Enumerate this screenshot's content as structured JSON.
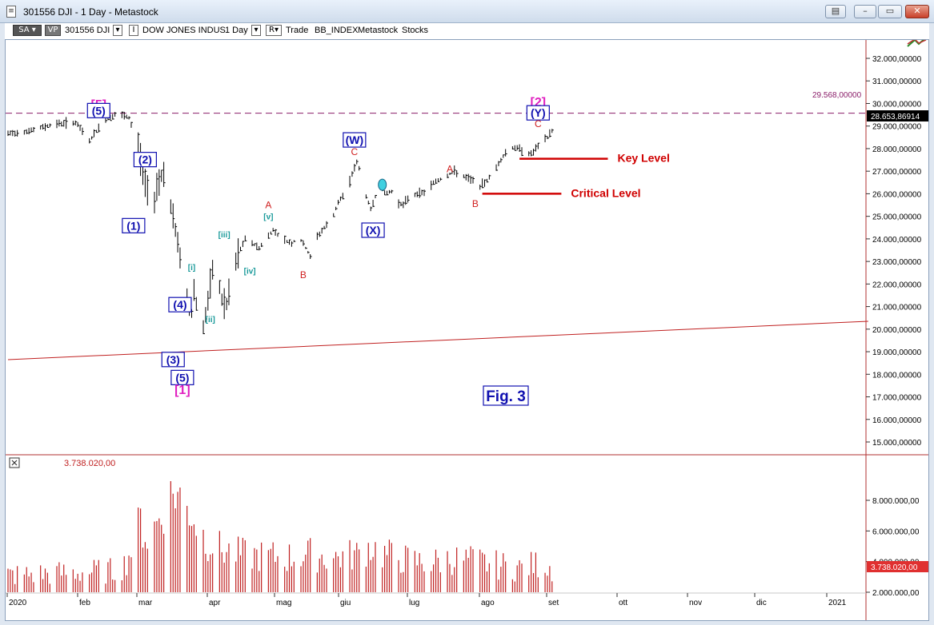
{
  "window": {
    "title": "301556 DJI - 1 Day - Metastock"
  },
  "toolbar": {
    "sa_label": "SA",
    "vp_label": "VP",
    "symbol": "301556 DJI",
    "security_name": "DOW JONES INDUS",
    "period": "1 Day",
    "r_label": "R",
    "mode": "Trade",
    "exchange": "BB_INDEX",
    "source": "Metastock",
    "category": "Stocks"
  },
  "chart_data": [
    {
      "type": "bar",
      "subtype": "ohlc",
      "x_ticks": [
        "2020",
        "feb",
        "mar",
        "apr",
        "mag",
        "giu",
        "lug",
        "ago",
        "set",
        "ott",
        "nov",
        "dic",
        "2021"
      ],
      "y_ticks": [
        "15.000,00000",
        "16.000,00000",
        "17.000,00000",
        "18.000,00000",
        "19.000,00000",
        "20.000,00000",
        "21.000,00000",
        "22.000,00000",
        "23.000,00000",
        "24.000,00000",
        "25.000,00000",
        "26.000,00000",
        "27.000,00000",
        "28.000,00000",
        "29.000,00000",
        "30.000,00000",
        "31.000,00000",
        "32.000,00000"
      ],
      "ylim": [
        14500,
        33300
      ],
      "price_path": [
        {
          "d": 0,
          "v": 28650
        },
        {
          "d": 10,
          "v": 28800
        },
        {
          "d": 20,
          "v": 29100
        },
        {
          "d": 29,
          "v": 29150
        },
        {
          "d": 35,
          "v": 28350
        },
        {
          "d": 41,
          "v": 29200
        },
        {
          "d": 47,
          "v": 29550
        },
        {
          "d": 52,
          "v": 29350
        },
        {
          "d": 56,
          "v": 28200
        },
        {
          "d": 59,
          "v": 26500
        },
        {
          "d": 62,
          "v": 25200
        },
        {
          "d": 64,
          "v": 26400
        },
        {
          "d": 67,
          "v": 27000
        },
        {
          "d": 70,
          "v": 25400
        },
        {
          "d": 73,
          "v": 23800
        },
        {
          "d": 75,
          "v": 22600
        },
        {
          "d": 77,
          "v": 21200
        },
        {
          "d": 79,
          "v": 20700
        },
        {
          "d": 80,
          "v": 21800
        },
        {
          "d": 82,
          "v": 20500
        },
        {
          "d": 83,
          "v": 19200
        },
        {
          "d": 84,
          "v": 20100
        },
        {
          "d": 86,
          "v": 21200
        },
        {
          "d": 88,
          "v": 22550
        },
        {
          "d": 90,
          "v": 22400
        },
        {
          "d": 92,
          "v": 21300
        },
        {
          "d": 94,
          "v": 21050
        },
        {
          "d": 96,
          "v": 22100
        },
        {
          "d": 99,
          "v": 23300
        },
        {
          "d": 102,
          "v": 24000
        },
        {
          "d": 105,
          "v": 23800
        },
        {
          "d": 108,
          "v": 23600
        },
        {
          "d": 111,
          "v": 24000
        },
        {
          "d": 114,
          "v": 24400
        },
        {
          "d": 118,
          "v": 24000
        },
        {
          "d": 122,
          "v": 23800
        },
        {
          "d": 125,
          "v": 24100
        },
        {
          "d": 128,
          "v": 23600
        },
        {
          "d": 130,
          "v": 23200
        },
        {
          "d": 133,
          "v": 24100
        },
        {
          "d": 136,
          "v": 24500
        },
        {
          "d": 139,
          "v": 24800
        },
        {
          "d": 142,
          "v": 25600
        },
        {
          "d": 146,
          "v": 26200
        },
        {
          "d": 148,
          "v": 26900
        },
        {
          "d": 150,
          "v": 27400
        },
        {
          "d": 152,
          "v": 26800
        },
        {
          "d": 154,
          "v": 25900
        },
        {
          "d": 156,
          "v": 25300
        },
        {
          "d": 158,
          "v": 25900
        },
        {
          "d": 160,
          "v": 26400
        },
        {
          "d": 162,
          "v": 26000
        },
        {
          "d": 165,
          "v": 26100
        },
        {
          "d": 168,
          "v": 25600
        },
        {
          "d": 170,
          "v": 25500
        },
        {
          "d": 172,
          "v": 25800
        },
        {
          "d": 176,
          "v": 26000
        },
        {
          "d": 180,
          "v": 26100
        },
        {
          "d": 183,
          "v": 26500
        },
        {
          "d": 187,
          "v": 26700
        },
        {
          "d": 192,
          "v": 27000
        },
        {
          "d": 197,
          "v": 26700
        },
        {
          "d": 200,
          "v": 26600
        },
        {
          "d": 203,
          "v": 26300
        },
        {
          "d": 206,
          "v": 26600
        },
        {
          "d": 209,
          "v": 27000
        },
        {
          "d": 212,
          "v": 27500
        },
        {
          "d": 215,
          "v": 28000
        },
        {
          "d": 218,
          "v": 28050
        },
        {
          "d": 222,
          "v": 27900
        },
        {
          "d": 225,
          "v": 27750
        },
        {
          "d": 228,
          "v": 28100
        },
        {
          "d": 232,
          "v": 28500
        },
        {
          "d": 234,
          "v": 28800
        }
      ],
      "resistance_line": {
        "value": 29568,
        "label": "29.568,00000"
      },
      "last_price_label": "28.653,86914",
      "trendline": {
        "start": {
          "d": 0,
          "v": 18650
        },
        "end": {
          "d": 370,
          "v": 20350
        }
      },
      "levels": [
        {
          "name": "Key Level",
          "value": 27550,
          "d_start": 220,
          "d_end": 258
        },
        {
          "name": "Critical Level",
          "value": 26000,
          "d_start": 204,
          "d_end": 238
        }
      ],
      "annotations": [
        {
          "text": "[5]",
          "color": "#e020c0",
          "d": 39,
          "v": 29950,
          "style": "bracket"
        },
        {
          "text": "(5)",
          "color": "#1010b0",
          "d": 39,
          "v": 29650,
          "style": "boxed"
        },
        {
          "text": "(2)",
          "color": "#1010b0",
          "d": 59,
          "v": 27480,
          "style": "boxed"
        },
        {
          "text": "(1)",
          "color": "#1010b0",
          "d": 54,
          "v": 24550,
          "style": "boxed"
        },
        {
          "text": "(4)",
          "color": "#1010b0",
          "d": 74,
          "v": 21050,
          "style": "boxed"
        },
        {
          "text": "(3)",
          "color": "#1010b0",
          "d": 71,
          "v": 18620,
          "style": "boxed"
        },
        {
          "text": "(5)",
          "color": "#1010b0",
          "d": 75,
          "v": 17820,
          "style": "boxed"
        },
        {
          "text": "[1]",
          "color": "#e020c0",
          "d": 75,
          "v": 17300,
          "style": "bracket"
        },
        {
          "text": "[i]",
          "color": "#1a9a9a",
          "d": 79,
          "v": 22750,
          "style": "small"
        },
        {
          "text": "[ii]",
          "color": "#1a9a9a",
          "d": 87,
          "v": 20450,
          "style": "small"
        },
        {
          "text": "[iii]",
          "color": "#1a9a9a",
          "d": 93,
          "v": 24200,
          "style": "small"
        },
        {
          "text": "[iv]",
          "color": "#1a9a9a",
          "d": 104,
          "v": 22600,
          "style": "small"
        },
        {
          "text": "[v]",
          "color": "#1a9a9a",
          "d": 112,
          "v": 25000,
          "style": "small"
        },
        {
          "text": "A",
          "color": "#d02020",
          "d": 112,
          "v": 25500,
          "style": "letter"
        },
        {
          "text": "B",
          "color": "#d02020",
          "d": 127,
          "v": 22400,
          "style": "letter"
        },
        {
          "text": "(W)",
          "color": "#1010b0",
          "d": 149,
          "v": 28350,
          "style": "boxed"
        },
        {
          "text": "C",
          "color": "#d02020",
          "d": 149,
          "v": 27850,
          "style": "letter"
        },
        {
          "text": "(X)",
          "color": "#1010b0",
          "d": 157,
          "v": 24350,
          "style": "boxed"
        },
        {
          "text": "A",
          "color": "#d02020",
          "d": 190,
          "v": 27100,
          "style": "letter"
        },
        {
          "text": "B",
          "color": "#d02020",
          "d": 201,
          "v": 25550,
          "style": "letter"
        },
        {
          "text": "[2]",
          "color": "#e020c0",
          "d": 228,
          "v": 30050,
          "style": "bracket"
        },
        {
          "text": "(Y)",
          "color": "#1010b0",
          "d": 228,
          "v": 29550,
          "style": "boxed"
        },
        {
          "text": "C",
          "color": "#d02020",
          "d": 228,
          "v": 29100,
          "style": "letter"
        }
      ],
      "marker": {
        "d": 161,
        "v": 26400,
        "color": "#40d0e0"
      },
      "fig_label": "Fig. 3"
    },
    {
      "type": "bar",
      "subtype": "volume",
      "header_value": "3.738.020,00",
      "last_value_label": "3.738.020,00",
      "y_ticks": [
        "2.000.000,00",
        "4.000.000,00",
        "6.000.000,00",
        "8.000.000,00"
      ],
      "ylim": [
        1800000,
        9400000
      ],
      "volume_path": [
        {
          "d": 0,
          "v": 3200000
        },
        {
          "d": 15,
          "v": 3300000
        },
        {
          "d": 30,
          "v": 3400000
        },
        {
          "d": 45,
          "v": 3500000
        },
        {
          "d": 50,
          "v": 3900000
        },
        {
          "d": 54,
          "v": 5300000
        },
        {
          "d": 57,
          "v": 6800000
        },
        {
          "d": 60,
          "v": 5600000
        },
        {
          "d": 64,
          "v": 6700000
        },
        {
          "d": 68,
          "v": 8200000
        },
        {
          "d": 72,
          "v": 8900000
        },
        {
          "d": 76,
          "v": 7800000
        },
        {
          "d": 79,
          "v": 7500000
        },
        {
          "d": 82,
          "v": 6300000
        },
        {
          "d": 86,
          "v": 5500000
        },
        {
          "d": 92,
          "v": 4900000
        },
        {
          "d": 100,
          "v": 4600000
        },
        {
          "d": 110,
          "v": 4500000
        },
        {
          "d": 120,
          "v": 4400000
        },
        {
          "d": 130,
          "v": 4600000
        },
        {
          "d": 140,
          "v": 4400000
        },
        {
          "d": 150,
          "v": 4600000
        },
        {
          "d": 156,
          "v": 5200000
        },
        {
          "d": 160,
          "v": 4700000
        },
        {
          "d": 170,
          "v": 4300000
        },
        {
          "d": 180,
          "v": 4000000
        },
        {
          "d": 190,
          "v": 4300000
        },
        {
          "d": 200,
          "v": 4200000
        },
        {
          "d": 210,
          "v": 3900000
        },
        {
          "d": 220,
          "v": 3700000
        },
        {
          "d": 230,
          "v": 4000000
        },
        {
          "d": 234,
          "v": 3738020
        }
      ]
    }
  ],
  "colors": {
    "bars": "#000000",
    "resistance": "#8b1f6a",
    "trendline": "#c02020",
    "levels": "#d00000",
    "fig_label": "#1010b0"
  }
}
